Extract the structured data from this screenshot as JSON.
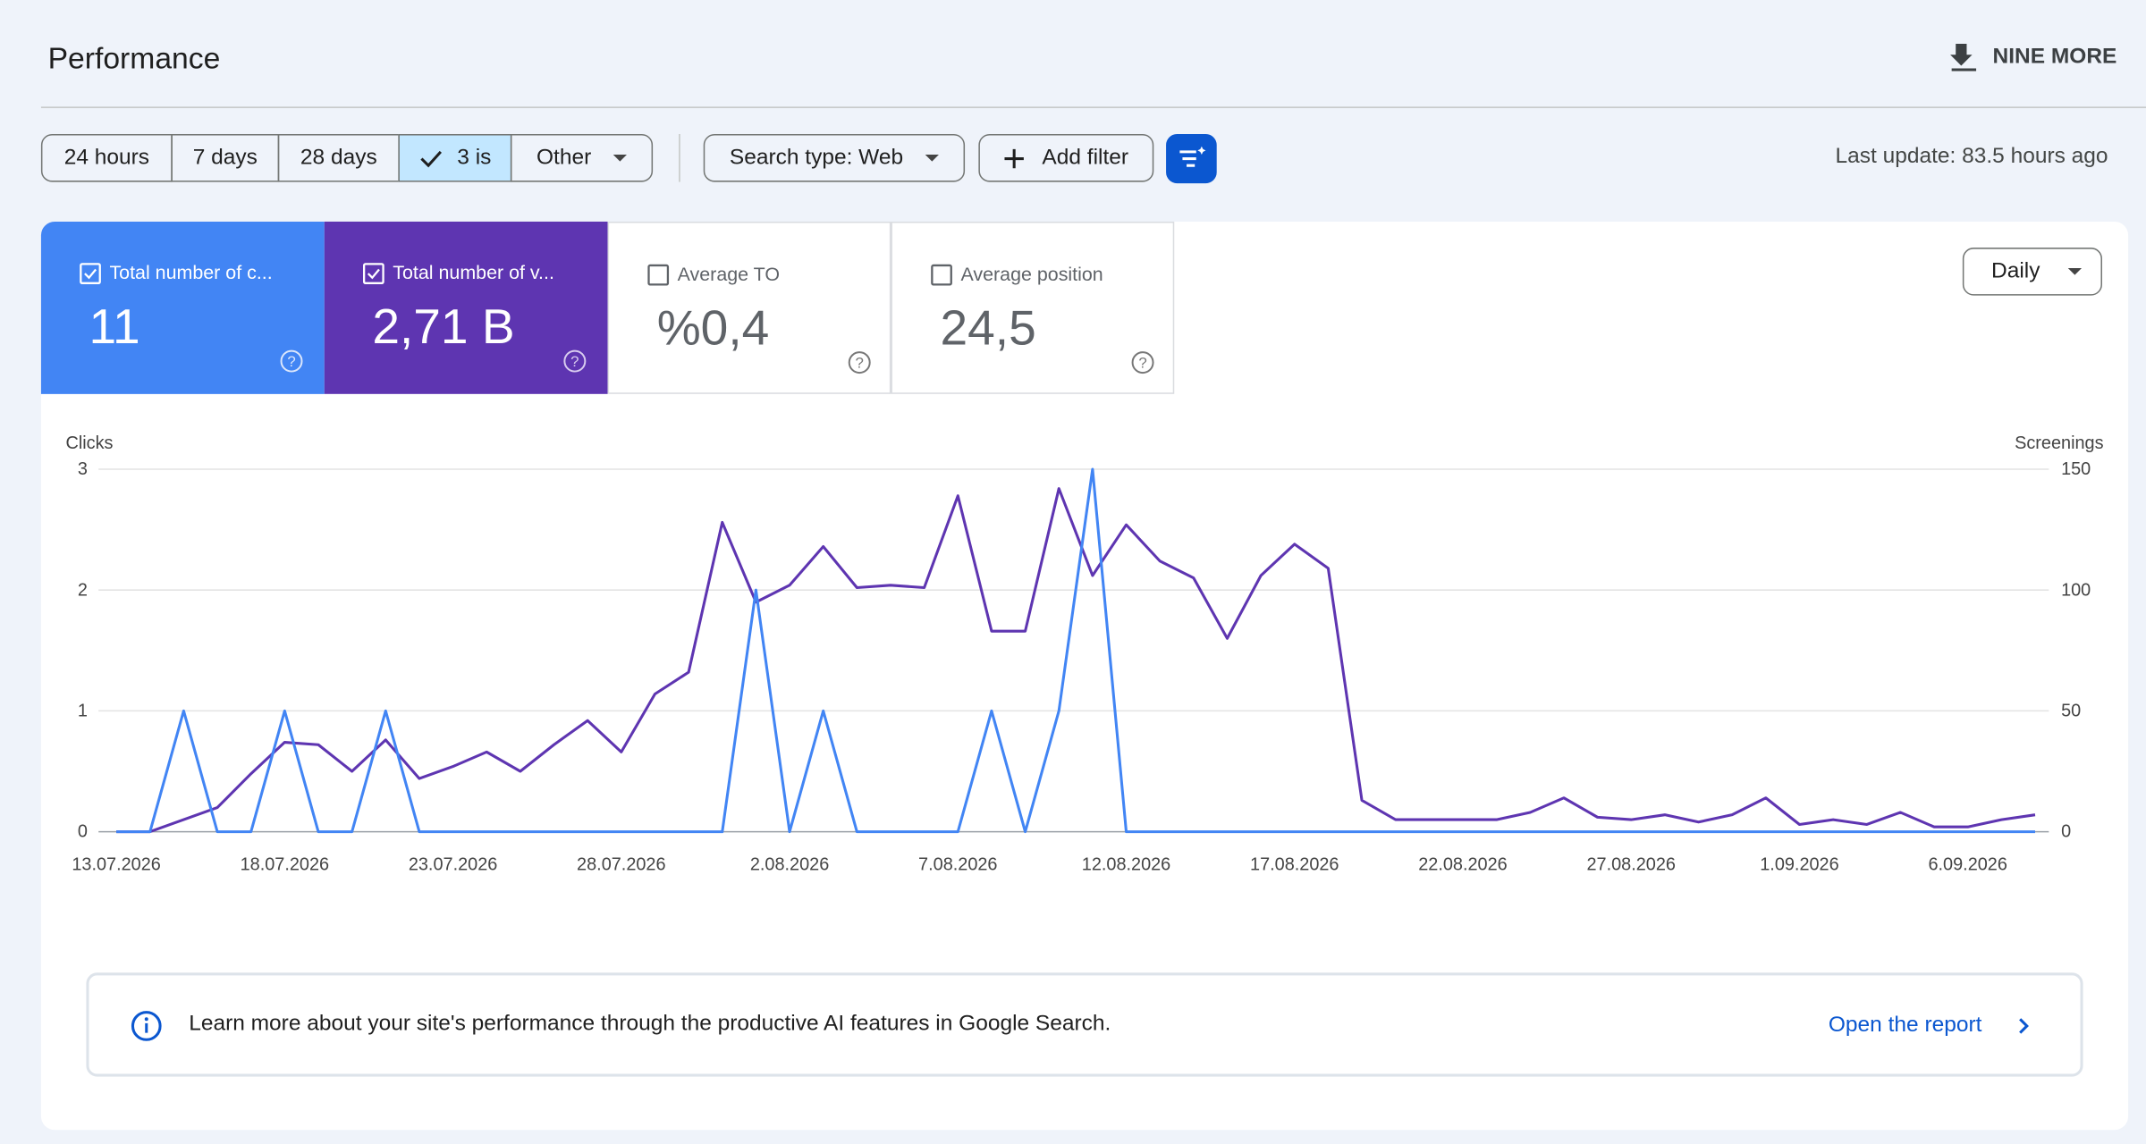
{
  "header": {
    "title": "Performance",
    "export": "NINE MORE"
  },
  "filters": {
    "ranges": [
      "24 hours",
      "7 days",
      "28 days",
      "3 is",
      "Other"
    ],
    "search_type": "Search type: Web",
    "add_filter": "Add filter",
    "last_update": "Last update: 83.5 hours ago"
  },
  "metrics": [
    {
      "label": "Total number of c...",
      "value": "11"
    },
    {
      "label": "Total number of v...",
      "value": "2,71 B"
    },
    {
      "label": "Average TO",
      "value": "%0,4"
    },
    {
      "label": "Average position",
      "value": "24,5"
    }
  ],
  "granularity": "Daily",
  "chart_data": {
    "type": "line",
    "categories": [
      "13.07.2026",
      null,
      null,
      null,
      null,
      "18.07.2026",
      null,
      null,
      null,
      null,
      "23.07.2026",
      null,
      null,
      null,
      null,
      "28.07.2026",
      null,
      null,
      null,
      null,
      "2.08.2026",
      null,
      null,
      null,
      null,
      "7.08.2026",
      null,
      null,
      null,
      null,
      "12.08.2026",
      null,
      null,
      null,
      null,
      "17.08.2026",
      null,
      null,
      null,
      null,
      "22.08.2026",
      null,
      null,
      null,
      null,
      "27.08.2026",
      null,
      null,
      null,
      null,
      "1.09.2026",
      null,
      null,
      null,
      null,
      "6.09.2026",
      null,
      null
    ],
    "series": [
      {
        "name": "Clicks",
        "color": "#4285f4",
        "values": [
          0,
          0,
          1,
          0,
          0,
          1,
          0,
          0,
          1,
          0,
          0,
          0,
          0,
          0,
          0,
          0,
          0,
          0,
          0,
          2,
          0,
          1,
          0,
          0,
          0,
          0,
          1,
          0,
          1,
          3,
          0,
          0,
          0,
          0,
          0,
          0,
          0,
          0,
          0,
          0,
          0,
          0,
          0,
          0,
          0,
          0,
          0,
          0,
          0,
          0,
          0,
          0,
          0,
          0,
          0,
          0,
          0,
          0
        ]
      },
      {
        "name": "Screenings",
        "color": "#5e35b1",
        "axis": "y2",
        "values": [
          0,
          0,
          5,
          10,
          24,
          37,
          36,
          25,
          38,
          22,
          27,
          33,
          25,
          36,
          46,
          33,
          57,
          66,
          128,
          95,
          102,
          118,
          101,
          102,
          101,
          139,
          83,
          83,
          142,
          106,
          127,
          112,
          105,
          80,
          106,
          119,
          109,
          13,
          5,
          5,
          5,
          5,
          8,
          14,
          6,
          5,
          7,
          4,
          7,
          14,
          3,
          5,
          3,
          8,
          2,
          2,
          5,
          7
        ]
      }
    ],
    "ylim": [
      0,
      3
    ],
    "yticks": [
      0,
      1,
      2,
      3
    ],
    "y2lim": [
      0,
      150
    ],
    "y2ticks": [
      0,
      50,
      100,
      150
    ],
    "grid": true
  },
  "banner": {
    "text": "Learn more about your site's performance through the productive AI features in Google Search.",
    "link": "Open the report"
  }
}
